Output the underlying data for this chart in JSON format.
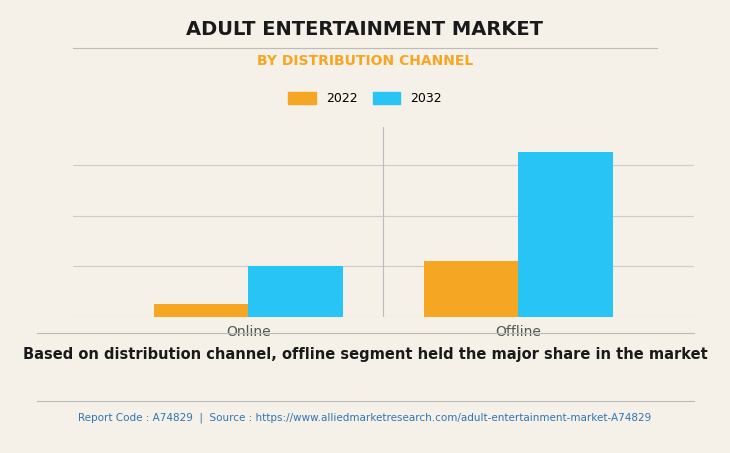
{
  "title": "ADULT ENTERTAINMENT MARKET",
  "subtitle": "BY DISTRIBUTION CHANNEL",
  "subtitle_color": "#F5A623",
  "categories": [
    "Online",
    "Offline"
  ],
  "series": [
    {
      "label": "2022",
      "values": [
        0.5,
        2.2
      ],
      "color": "#F5A623"
    },
    {
      "label": "2032",
      "values": [
        2.0,
        6.5
      ],
      "color": "#29C4F6"
    }
  ],
  "ylim": [
    0,
    7.5
  ],
  "background_color": "#F5F0E8",
  "plot_bg_color": "#F5F0E8",
  "grid_color": "#CCCCCC",
  "bar_width": 0.35,
  "title_fontsize": 14,
  "subtitle_fontsize": 10,
  "legend_fontsize": 9,
  "xlabel_fontsize": 10,
  "footer_text": "Based on distribution channel, offline segment held the major share in the market",
  "footer_fontsize": 10.5,
  "report_text": "Report Code : A74829  |  Source : https://www.alliedmarketresearch.com/adult-entertainment-market-A74829",
  "report_color": "#2E75B6",
  "report_fontsize": 7.5,
  "divider_color": "#BBBBBB"
}
